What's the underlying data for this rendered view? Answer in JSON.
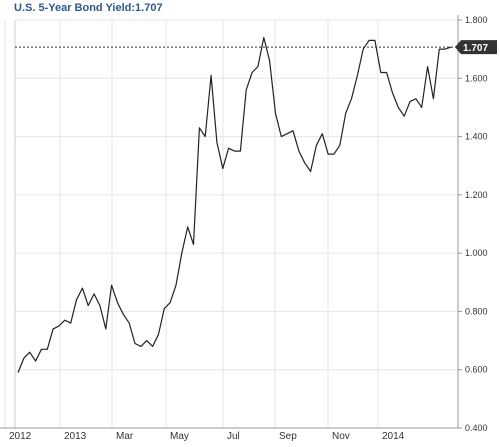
{
  "chart_data": {
    "type": "line",
    "title": "U.S. 5-Year Bond Yield:1.707",
    "current_value": 1.707,
    "current_value_label": "1.707",
    "ylim": [
      0.4,
      1.8
    ],
    "yticks": [
      0.4,
      0.6,
      0.8,
      1.0,
      1.2,
      1.4,
      1.6,
      1.8
    ],
    "ytick_labels": [
      "0.400",
      "0.600",
      "0.800",
      "1.000",
      "1.200",
      "1.400",
      "1.600",
      "1.800"
    ],
    "xticks": [
      "2012",
      "2013",
      "Mar",
      "May",
      "Jul",
      "Sep",
      "Nov",
      "2014"
    ],
    "grid": true,
    "line_color": "#222222",
    "badge_color": "#333333",
    "grid_color": "#e6e6e6",
    "x": [
      0,
      1,
      2,
      3,
      4,
      5,
      6,
      7,
      8,
      9,
      10,
      11,
      12,
      13,
      14,
      15,
      16,
      17,
      18,
      19,
      20,
      21,
      22,
      23,
      24,
      25,
      26,
      27,
      28,
      29,
      30,
      31,
      32,
      33,
      34,
      35,
      36,
      37,
      38,
      39,
      40,
      41,
      42,
      43,
      44,
      45,
      46,
      47,
      48,
      49,
      50,
      51,
      52,
      53,
      54,
      55,
      56,
      57,
      58,
      59,
      60,
      61,
      62,
      63,
      64,
      65,
      66,
      67,
      68,
      69,
      70,
      71,
      72,
      73,
      74
    ],
    "values": [
      0.59,
      0.64,
      0.66,
      0.63,
      0.67,
      0.67,
      0.74,
      0.75,
      0.77,
      0.76,
      0.84,
      0.88,
      0.82,
      0.86,
      0.82,
      0.74,
      0.89,
      0.83,
      0.79,
      0.76,
      0.69,
      0.68,
      0.7,
      0.68,
      0.72,
      0.81,
      0.83,
      0.89,
      1.0,
      1.09,
      1.03,
      1.43,
      1.4,
      1.61,
      1.38,
      1.29,
      1.36,
      1.35,
      1.35,
      1.56,
      1.62,
      1.64,
      1.74,
      1.66,
      1.48,
      1.4,
      1.41,
      1.42,
      1.35,
      1.31,
      1.28,
      1.37,
      1.41,
      1.34,
      1.34,
      1.37,
      1.48,
      1.53,
      1.61,
      1.7,
      1.73,
      1.73,
      1.62,
      1.62,
      1.55,
      1.5,
      1.47,
      1.52,
      1.53,
      1.5,
      1.64,
      1.53,
      1.7,
      1.7,
      1.707
    ]
  }
}
